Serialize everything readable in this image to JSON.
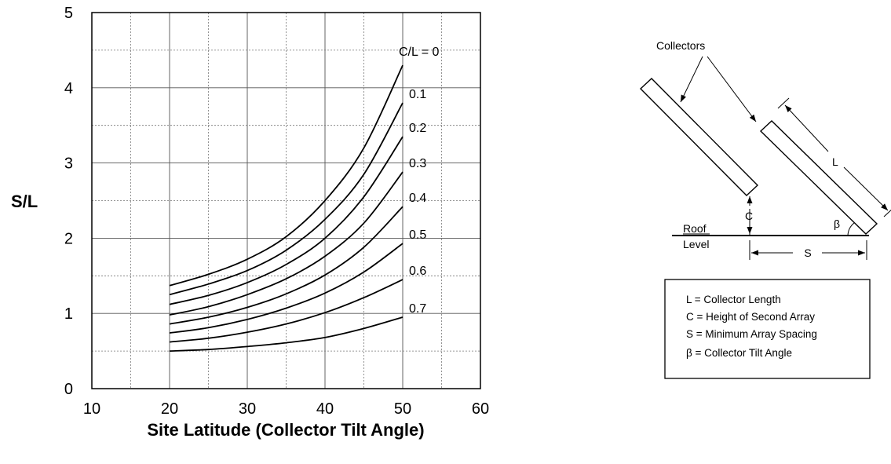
{
  "chart_data": {
    "type": "line",
    "title": "",
    "xlabel": "Site Latitude (Collector Tilt Angle)",
    "ylabel": "S/L",
    "xlim": [
      10,
      60
    ],
    "ylim": [
      0,
      5
    ],
    "xticks": [
      "10",
      "20",
      "30",
      "40",
      "50",
      "60"
    ],
    "yticks": [
      "0",
      "1",
      "2",
      "3",
      "4",
      "5"
    ],
    "grid": true,
    "series": [
      {
        "name": "C/L = 0",
        "x": [
          20,
          25,
          30,
          35,
          40,
          45,
          50
        ],
        "y": [
          1.37,
          1.52,
          1.72,
          2.02,
          2.5,
          3.2,
          4.3
        ]
      },
      {
        "name": "0.1",
        "x": [
          20,
          25,
          30,
          35,
          40,
          45,
          50
        ],
        "y": [
          1.25,
          1.39,
          1.57,
          1.84,
          2.25,
          2.85,
          3.8
        ]
      },
      {
        "name": "0.2",
        "x": [
          20,
          25,
          30,
          35,
          40,
          45,
          50
        ],
        "y": [
          1.12,
          1.24,
          1.41,
          1.65,
          2.0,
          2.55,
          3.35
        ]
      },
      {
        "name": "0.3",
        "x": [
          20,
          25,
          30,
          35,
          40,
          45,
          50
        ],
        "y": [
          0.98,
          1.09,
          1.25,
          1.46,
          1.76,
          2.2,
          2.88
        ]
      },
      {
        "name": "0.4",
        "x": [
          20,
          25,
          30,
          35,
          40,
          45,
          50
        ],
        "y": [
          0.86,
          0.95,
          1.08,
          1.26,
          1.51,
          1.88,
          2.42
        ]
      },
      {
        "name": "0.5",
        "x": [
          20,
          25,
          30,
          35,
          40,
          45,
          50
        ],
        "y": [
          0.74,
          0.81,
          0.92,
          1.07,
          1.27,
          1.55,
          1.93
        ]
      },
      {
        "name": "0.6",
        "x": [
          20,
          25,
          30,
          35,
          40,
          45,
          50
        ],
        "y": [
          0.62,
          0.67,
          0.75,
          0.86,
          1.01,
          1.21,
          1.45
        ]
      },
      {
        "name": "0.7",
        "x": [
          20,
          25,
          30,
          35,
          40,
          45,
          50
        ],
        "y": [
          0.5,
          0.52,
          0.56,
          0.61,
          0.68,
          0.8,
          0.95
        ]
      }
    ]
  },
  "diagram": {
    "collectors_label": "Collectors",
    "l_label": "L",
    "c_label": "C",
    "s_label": "S",
    "beta_label": "β",
    "roof_label": "Roof",
    "level_label": "Level",
    "legend": [
      "L  = Collector Length",
      "C = Height of Second Array",
      "S = Minimum Array Spacing",
      "β = Collector Tilt Angle"
    ]
  }
}
